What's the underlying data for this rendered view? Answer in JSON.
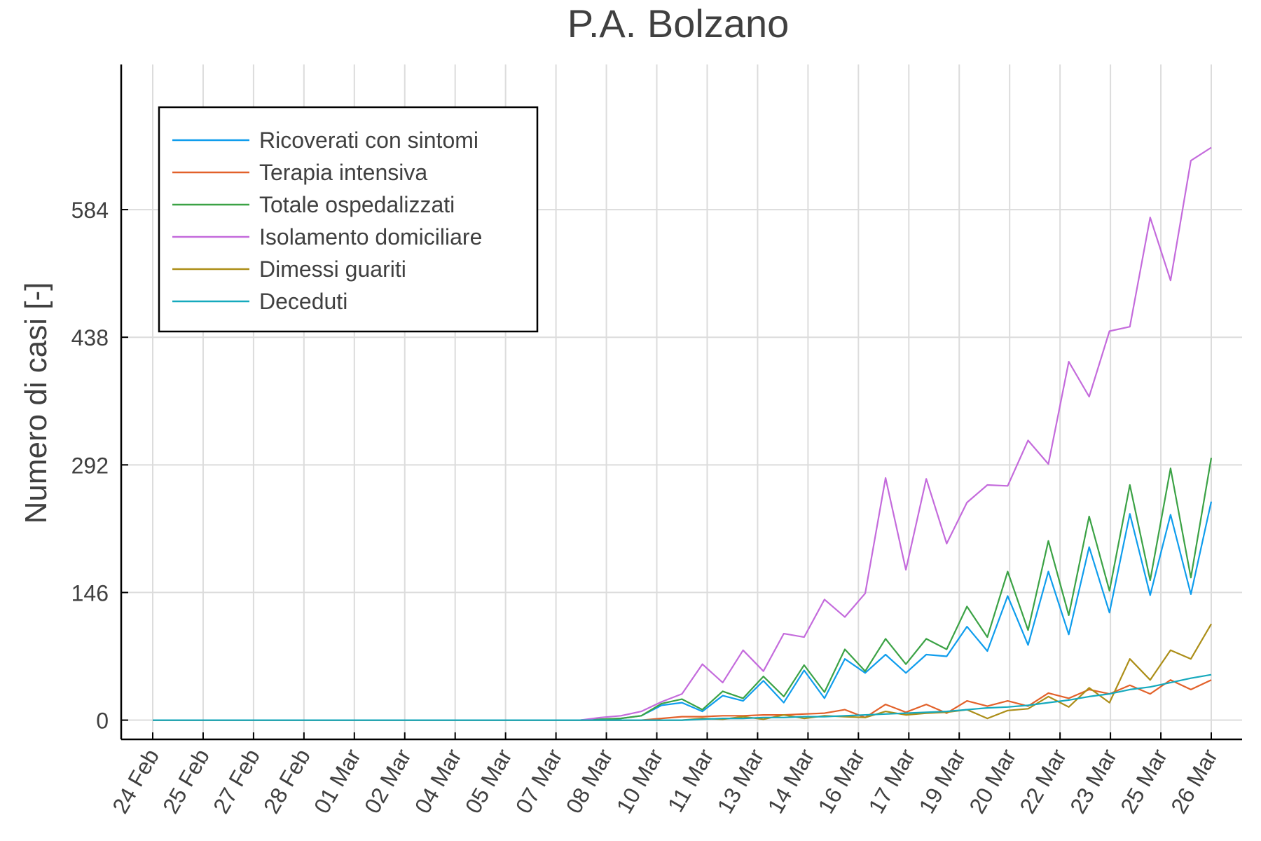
{
  "chart_data": {
    "type": "line",
    "title": "P.A. Bolzano",
    "xlabel": "",
    "ylabel": "Numero di casi [-]",
    "x_tick_labels": [
      "24 Feb",
      "25 Feb",
      "27 Feb",
      "28 Feb",
      "01 Mar",
      "02 Mar",
      "04 Mar",
      "05 Mar",
      "07 Mar",
      "08 Mar",
      "10 Mar",
      "11 Mar",
      "13 Mar",
      "14 Mar",
      "16 Mar",
      "17 Mar",
      "19 Mar",
      "20 Mar",
      "22 Mar",
      "23 Mar",
      "25 Mar",
      "26 Mar"
    ],
    "x": [
      "24 Feb",
      "24 Feb 12h",
      "25 Feb",
      "25 Feb 12h",
      "26 Feb",
      "27 Feb",
      "27 Feb 12h",
      "28 Feb",
      "28 Feb 12h",
      "29 Feb",
      "01 Mar",
      "01 Mar 12h",
      "02 Mar",
      "02 Mar 12h",
      "03 Mar",
      "04 Mar",
      "04 Mar 12h",
      "05 Mar",
      "05 Mar 12h",
      "06 Mar",
      "07 Mar",
      "07 Mar 12h",
      "08 Mar",
      "08 Mar 12h",
      "09 Mar",
      "10 Mar",
      "10 Mar 12h",
      "11 Mar",
      "11 Mar 12h",
      "12 Mar",
      "13 Mar",
      "13 Mar 12h",
      "14 Mar",
      "14 Mar 12h",
      "15 Mar",
      "16 Mar",
      "16 Mar 12h",
      "17 Mar",
      "17 Mar 12h",
      "18 Mar",
      "19 Mar",
      "19 Mar 12h",
      "20 Mar",
      "20 Mar 12h",
      "21 Mar",
      "22 Mar",
      "22 Mar 12h",
      "23 Mar",
      "23 Mar 12h",
      "24 Mar",
      "25 Mar",
      "25 Mar 12h",
      "26 Mar"
    ],
    "y_ticks": [
      0,
      146,
      292,
      438,
      584
    ],
    "ylim": [
      -22,
      750
    ],
    "grid": true,
    "legend_position": "top-left",
    "series": [
      {
        "name": "Ricoverati con sintomi",
        "color": "#0f9ded",
        "values": [
          0,
          0,
          0,
          0,
          0,
          0,
          0,
          0,
          0,
          0,
          0,
          0,
          0,
          0,
          0,
          0,
          0,
          0,
          0,
          0,
          0,
          0,
          1,
          2,
          5,
          17,
          20,
          10,
          28,
          22,
          45,
          20,
          57,
          25,
          70,
          54,
          75,
          54,
          75,
          73,
          107,
          79,
          142,
          86,
          170,
          98,
          198,
          123,
          236,
          143,
          235,
          144,
          250
        ]
      },
      {
        "name": "Terapia intensiva",
        "color": "#e2612a",
        "values": [
          0,
          0,
          0,
          0,
          0,
          0,
          0,
          0,
          0,
          0,
          0,
          0,
          0,
          0,
          0,
          0,
          0,
          0,
          0,
          0,
          0,
          0,
          0,
          0,
          0,
          2,
          4,
          4,
          5,
          5,
          6,
          6,
          7,
          8,
          12,
          3,
          18,
          9,
          18,
          8,
          22,
          16,
          22,
          16,
          31,
          25,
          35,
          30,
          40,
          30,
          46,
          35,
          46
        ]
      },
      {
        "name": "Totale ospedalizzati",
        "color": "#3ba245",
        "values": [
          0,
          0,
          0,
          0,
          0,
          0,
          0,
          0,
          0,
          0,
          0,
          0,
          0,
          0,
          0,
          0,
          0,
          0,
          0,
          0,
          0,
          0,
          1,
          2,
          5,
          19,
          24,
          12,
          33,
          25,
          50,
          27,
          63,
          32,
          81,
          56,
          93,
          64,
          93,
          81,
          130,
          95,
          170,
          103,
          205,
          120,
          233,
          148,
          269,
          160,
          288,
          163,
          300
        ]
      },
      {
        "name": "Isolamento domiciliare",
        "color": "#c46bdc",
        "values": [
          0,
          0,
          0,
          0,
          0,
          0,
          0,
          0,
          0,
          0,
          0,
          0,
          0,
          0,
          0,
          0,
          0,
          0,
          0,
          0,
          0,
          0,
          3,
          5,
          10,
          21,
          30,
          64,
          43,
          80,
          56,
          99,
          95,
          138,
          118,
          145,
          277,
          172,
          276,
          202,
          249,
          269,
          268,
          320,
          293,
          410,
          370,
          445,
          450,
          575,
          503,
          640,
          655
        ]
      },
      {
        "name": "Dimessi guariti",
        "color": "#ac8e18",
        "values": [
          0,
          0,
          0,
          0,
          0,
          0,
          0,
          0,
          0,
          0,
          0,
          0,
          0,
          0,
          0,
          0,
          0,
          0,
          0,
          0,
          0,
          0,
          0,
          0,
          0,
          0,
          0,
          2,
          1,
          4,
          1,
          6,
          2,
          5,
          4,
          3,
          10,
          6,
          8,
          9,
          12,
          2,
          11,
          13,
          27,
          15,
          37,
          20,
          70,
          46,
          80,
          70,
          110
        ]
      },
      {
        "name": "Deceduti",
        "color": "#15a9bd",
        "values": [
          0,
          0,
          0,
          0,
          0,
          0,
          0,
          0,
          0,
          0,
          0,
          0,
          0,
          0,
          0,
          0,
          0,
          0,
          0,
          0,
          0,
          0,
          0,
          0,
          0,
          0,
          0,
          1,
          2,
          2,
          3,
          3,
          4,
          4,
          5,
          6,
          7,
          8,
          9,
          10,
          12,
          14,
          15,
          17,
          20,
          23,
          27,
          30,
          35,
          38,
          43,
          48,
          52
        ]
      }
    ]
  }
}
